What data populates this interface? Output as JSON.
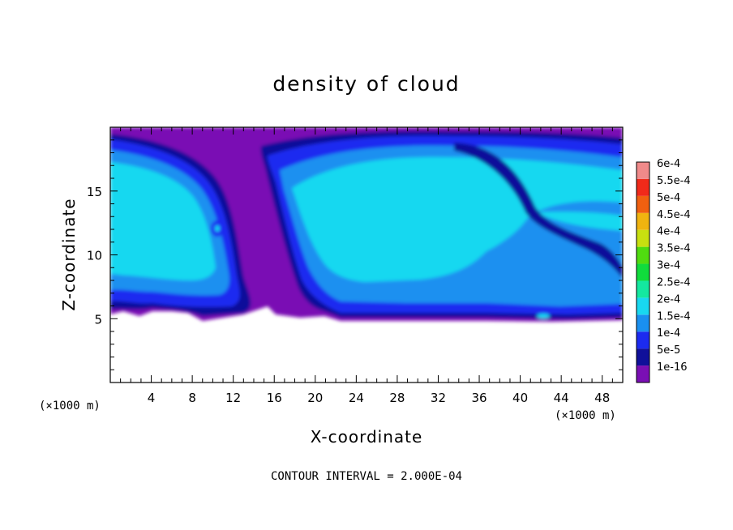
{
  "chart_data": {
    "type": "heatmap",
    "title": "density of cloud",
    "xlabel": "X-coordinate",
    "ylabel": "Z-coordinate",
    "x_unit": "(×1000 m)",
    "xlim": [
      0,
      50
    ],
    "ylim": [
      0,
      20
    ],
    "x_ticks": [
      4,
      8,
      12,
      16,
      20,
      24,
      28,
      32,
      36,
      40,
      44,
      48
    ],
    "y_ticks": [
      5,
      10,
      15
    ],
    "footer": "CONTOUR INTERVAL = 2.000E-04",
    "colorbar": {
      "levels": [
        {
          "label": "1e-16",
          "color": "#7a0fb4"
        },
        {
          "label": "5e-5",
          "color": "#10109a"
        },
        {
          "label": "1e-4",
          "color": "#1c2bf0"
        },
        {
          "label": "1.5e-4",
          "color": "#1a90f0"
        },
        {
          "label": "2e-4",
          "color": "#18d8f0"
        },
        {
          "label": "2.5e-4",
          "color": "#14e8a0"
        },
        {
          "label": "3e-4",
          "color": "#10dc3c"
        },
        {
          "label": "3.5e-4",
          "color": "#50dc10"
        },
        {
          "label": "4e-4",
          "color": "#c8e010"
        },
        {
          "label": "4.5e-4",
          "color": "#f0b410"
        },
        {
          "label": "5e-4",
          "color": "#f06010"
        },
        {
          "label": "5.5e-4",
          "color": "#f02a1a"
        },
        {
          "label": "6e-4",
          "color": "#f08a8a"
        }
      ]
    }
  }
}
